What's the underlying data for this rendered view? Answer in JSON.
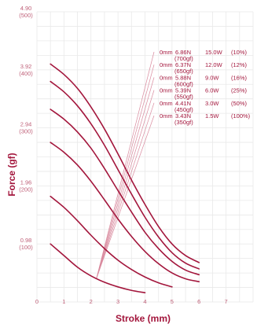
{
  "chart_data": {
    "type": "line",
    "xlabel": "Stroke (mm)",
    "ylabel": "Force (gf)",
    "xlim": [
      0,
      8
    ],
    "ylim": [
      0,
      500
    ],
    "grid": true,
    "x_ticks": [
      "0",
      "1",
      "2",
      "3",
      "4",
      "5",
      "6",
      "7"
    ],
    "y_ticks": [
      {
        "newton": "0.98",
        "gf": "(100)",
        "value": 100
      },
      {
        "newton": "1.96",
        "gf": "(200)",
        "value": 200
      },
      {
        "newton": "2.94",
        "gf": "(300)",
        "value": 300
      },
      {
        "newton": "3.92",
        "gf": "(400)",
        "value": 400
      },
      {
        "newton": "4.90",
        "gf": "(500)",
        "value": 500
      }
    ],
    "line_color": "#a3163c",
    "series": [
      {
        "force_n": "6.86N",
        "force_gf": "(700gf)",
        "power": "15.0W",
        "duty": "(10%)",
        "x": [
          0.5,
          1.0,
          1.5,
          2.0,
          2.5,
          3.0,
          3.5,
          4.0,
          4.5,
          5.0,
          5.5,
          6.0
        ],
        "y": [
          410,
          392,
          368,
          336,
          298,
          255,
          210,
          168,
          130,
          100,
          80,
          68
        ]
      },
      {
        "force_n": "6.37N",
        "force_gf": "(650gf)",
        "power": "12.0W",
        "duty": "(12%)",
        "x": [
          0.5,
          1.0,
          1.5,
          2.0,
          2.5,
          3.0,
          3.5,
          4.0,
          4.5,
          5.0,
          5.5,
          6.0
        ],
        "y": [
          380,
          362,
          338,
          307,
          270,
          228,
          186,
          146,
          112,
          85,
          67,
          57
        ]
      },
      {
        "force_n": "5.88N",
        "force_gf": "(600gf)",
        "power": "9.0W",
        "duty": "(16%)",
        "x": [
          0.5,
          1.0,
          1.5,
          2.0,
          2.5,
          3.0,
          3.5,
          4.0,
          4.5,
          5.0,
          5.5,
          6.0
        ],
        "y": [
          332,
          315,
          293,
          265,
          230,
          192,
          155,
          120,
          92,
          70,
          55,
          47
        ]
      },
      {
        "force_n": "5.39N",
        "force_gf": "(550gf)",
        "power": "6.0W",
        "duty": "(25%)",
        "x": [
          0.5,
          1.0,
          1.5,
          2.0,
          2.5,
          3.0,
          3.5,
          4.0,
          4.5,
          5.0,
          5.5,
          6.0
        ],
        "y": [
          275,
          258,
          236,
          208,
          176,
          143,
          113,
          87,
          66,
          50,
          40,
          35
        ]
      },
      {
        "force_n": "4.41N",
        "force_gf": "(450gf)",
        "power": "3.0W",
        "duty": "(50%)",
        "x": [
          0.5,
          1.0,
          1.5,
          2.0,
          2.5,
          3.0,
          3.5,
          4.0,
          4.5,
          5.0
        ],
        "y": [
          182,
          163,
          140,
          115,
          92,
          72,
          56,
          43,
          33,
          26
        ]
      },
      {
        "force_n": "3.43N",
        "force_gf": "(350gf)",
        "power": "1.5W",
        "duty": "(100%)",
        "x": [
          0.5,
          1.0,
          1.5,
          2.0,
          2.5,
          3.0,
          3.5,
          4.0
        ],
        "y": [
          100,
          80,
          60,
          45,
          34,
          26,
          20,
          16
        ]
      }
    ],
    "pointer_anchor": {
      "x": 2.2,
      "y": 40
    }
  }
}
